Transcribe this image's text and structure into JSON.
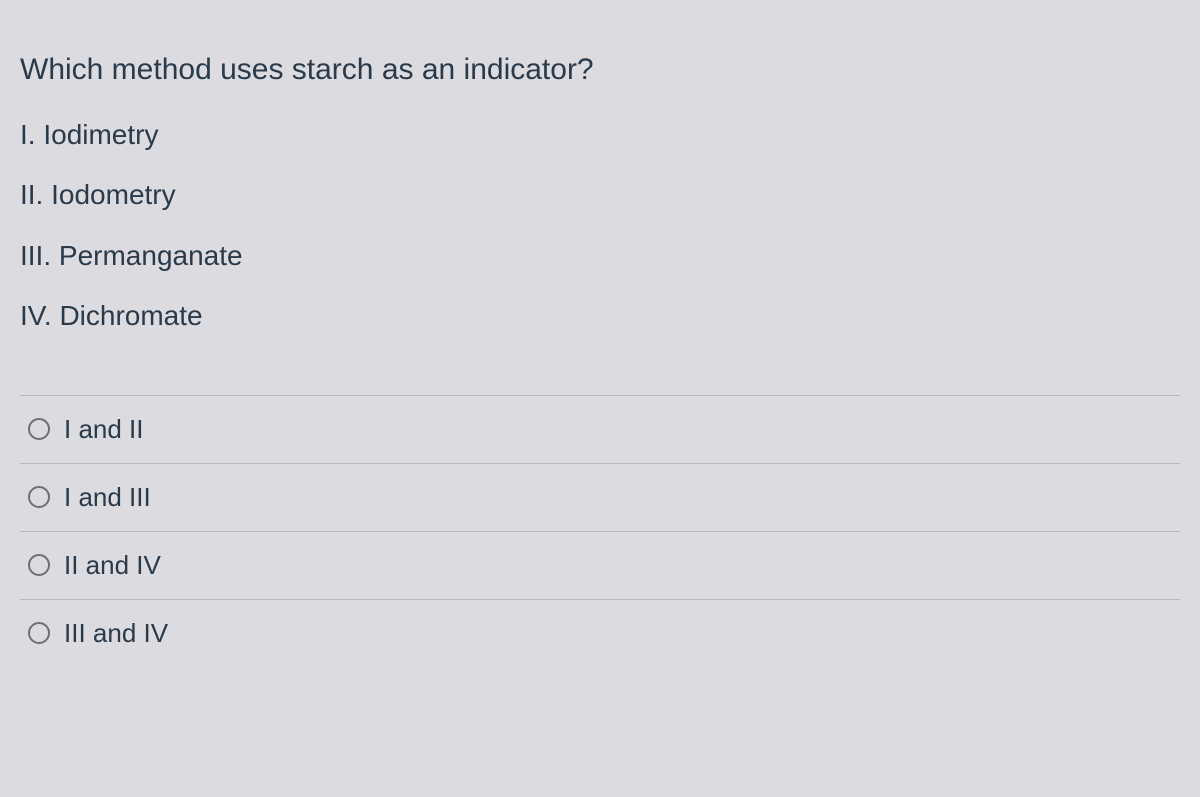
{
  "question": {
    "prompt": "Which method uses starch as an indicator?",
    "items": [
      "I. Iodimetry",
      "II. Iodometry",
      "III. Permanganate",
      "IV. Dichromate"
    ]
  },
  "answers": [
    {
      "label": "I and II"
    },
    {
      "label": "I and III"
    },
    {
      "label": "II and IV"
    },
    {
      "label": "III and IV"
    }
  ],
  "colors": {
    "background": "#dcdce0",
    "text": "#2a3a4a",
    "border": "#b8b8be",
    "radio_border": "#6a6f78"
  },
  "typography": {
    "question_fontsize": 30,
    "item_fontsize": 28,
    "answer_fontsize": 26,
    "font_family": "Arial"
  }
}
